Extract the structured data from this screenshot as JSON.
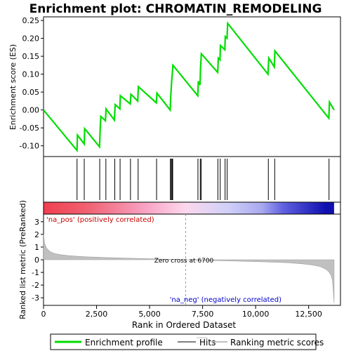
{
  "chart_data": {
    "type": "line",
    "title": "Enrichment plot: CHROMATIN_REMODELING",
    "es_panel": {
      "ylabel": "Enrichment score (ES)",
      "ylim": [
        -0.13,
        0.26
      ],
      "yticks": [
        -0.1,
        -0.05,
        0.0,
        0.05,
        0.1,
        0.15,
        0.2,
        0.25
      ],
      "ytick_labels": [
        "-0.10",
        "-0.05",
        "0.00",
        "0.05",
        "0.10",
        "0.15",
        "0.20",
        "0.25"
      ],
      "line_color": "#00dd00",
      "x": [
        0,
        1580,
        1600,
        1920,
        1940,
        2640,
        2660,
        2700,
        2920,
        2950,
        3340,
        3380,
        3600,
        3620,
        4090,
        4120,
        4440,
        4470,
        5320,
        5350,
        5970,
        6000,
        6040,
        6070,
        6100,
        7270,
        7300,
        7380,
        7400,
        7440,
        8210,
        8240,
        8320,
        8340,
        8550,
        8570,
        8650,
        8680,
        10580,
        10620,
        10880,
        10910,
        13450,
        13480,
        13700
      ],
      "es": [
        0.0,
        -0.113,
        -0.07,
        -0.095,
        -0.052,
        -0.103,
        -0.068,
        -0.018,
        -0.03,
        0.003,
        -0.028,
        0.015,
        0.003,
        0.04,
        0.017,
        0.044,
        0.025,
        0.065,
        0.02,
        0.047,
        0.0,
        0.04,
        0.08,
        0.1,
        0.125,
        0.04,
        0.08,
        0.07,
        0.115,
        0.157,
        0.105,
        0.145,
        0.14,
        0.18,
        0.168,
        0.205,
        0.2,
        0.242,
        0.1,
        0.145,
        0.12,
        0.165,
        -0.023,
        0.022,
        0.0
      ]
    },
    "hits": [
      1580,
      1920,
      2650,
      2940,
      3360,
      3610,
      4100,
      4460,
      5330,
      5980,
      6020,
      6060,
      6090,
      7280,
      7390,
      7430,
      8220,
      8330,
      8560,
      8660,
      10600,
      10900,
      13460
    ],
    "rank_panel": {
      "ylabel": "Ranked list metric (PreRanked)",
      "ylim": [
        -3.6,
        3.6
      ],
      "yticks": [
        -3,
        -2,
        -1,
        0,
        1,
        2,
        3
      ],
      "ytick_labels": [
        "-3",
        "-2",
        "-1",
        "0",
        "1",
        "2",
        "3"
      ],
      "fill_color": "#c0c0c0",
      "x": [
        0,
        50,
        150,
        300,
        500,
        800,
        1200,
        1600,
        2000,
        3000,
        4000,
        5000,
        6000,
        6700,
        7500,
        8500,
        9500,
        10500,
        11500,
        12200,
        12700,
        13000,
        13200,
        13350,
        13450,
        13550,
        13620,
        13660,
        13700
      ],
      "values": [
        2.0,
        1.3,
        0.9,
        0.65,
        0.5,
        0.4,
        0.32,
        0.27,
        0.23,
        0.17,
        0.12,
        0.08,
        0.03,
        0.0,
        -0.04,
        -0.08,
        -0.12,
        -0.17,
        -0.23,
        -0.32,
        -0.42,
        -0.52,
        -0.65,
        -0.8,
        -0.95,
        -1.2,
        -1.6,
        -2.4,
        -3.4
      ]
    },
    "xlabel": "Rank in Ordered Dataset",
    "xlim": [
      0,
      14000
    ],
    "xticks": [
      0,
      2500,
      5000,
      7500,
      10000,
      12500
    ],
    "xtick_labels": [
      "0",
      "2,500",
      "5,000",
      "7,500",
      "10,000",
      "12,500"
    ],
    "zero_cross": 6700,
    "zero_cross_label": "Zero cross at 6700",
    "pos_label": "'na_pos' (positively correlated)",
    "neg_label": "'na_neg' (negatively correlated)",
    "pos_label_color": "#cc0000",
    "neg_label_color": "#0000cc",
    "legend": {
      "entries": [
        {
          "name": "Enrichment profile",
          "color": "#00dd00"
        },
        {
          "name": "Hits",
          "color": "#000000"
        },
        {
          "name": "Ranking metric scores",
          "color": "#c0c0c0"
        }
      ]
    },
    "colorbar": {
      "data_end": 13700,
      "stops": [
        {
          "x": 0,
          "color": "#f04050"
        },
        {
          "x": 2000,
          "color": "#f06070"
        },
        {
          "x": 4700,
          "color": "#f8a0c0"
        },
        {
          "x": 6700,
          "color": "#fcd8ee"
        },
        {
          "x": 8700,
          "color": "#d0d0f8"
        },
        {
          "x": 10300,
          "color": "#a8a8f0"
        },
        {
          "x": 11300,
          "color": "#6060e0"
        },
        {
          "x": 13300,
          "color": "#1010b0"
        }
      ]
    }
  }
}
